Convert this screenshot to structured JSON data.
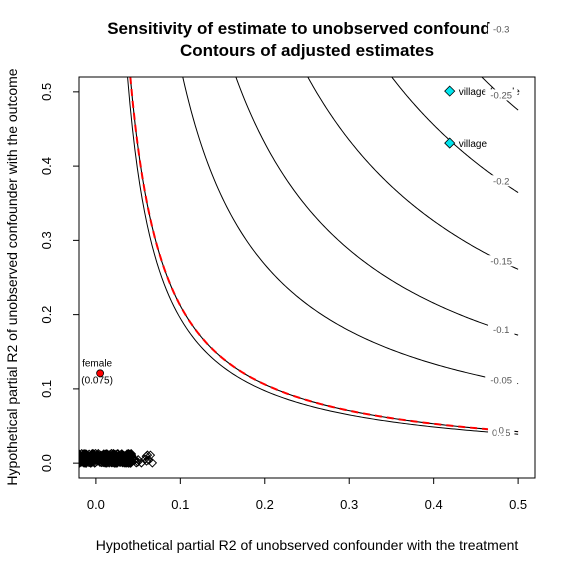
{
  "chart_data": {
    "type": "contour",
    "title": "Sensitivity of estimate to unobserved confounder",
    "subtitle": "Contours of adjusted estimates",
    "xlabel": "Hypothetical partial R2 of unobserved confounder with the treatment",
    "ylabel": "Hypothetical partial R2 of unobserved confounder with the outcome",
    "xlim": [
      -0.02,
      0.52
    ],
    "ylim": [
      -0.02,
      0.52
    ],
    "x_ticks": [
      "0.0",
      "0.1",
      "0.2",
      "0.3",
      "0.4",
      "0.5"
    ],
    "y_ticks": [
      "0.0",
      "0.1",
      "0.2",
      "0.3",
      "0.4",
      "0.5"
    ],
    "grid": false,
    "contours": [
      {
        "label": "0.05",
        "k": 0.0195,
        "color": "#000000",
        "dashed": false
      },
      {
        "label": "0",
        "k": 0.0212,
        "color": "#ff0000",
        "dashed": true
      },
      {
        "label": "-0.05",
        "k": 0.0535,
        "color": "#000000",
        "dashed": false
      },
      {
        "label": "-0.1",
        "k": 0.0862,
        "color": "#000000",
        "dashed": false
      },
      {
        "label": "-0.15",
        "k": 0.1305,
        "color": "#000000",
        "dashed": false
      },
      {
        "label": "-0.2",
        "k": 0.1822,
        "color": "#000000",
        "dashed": false
      },
      {
        "label": "-0.25",
        "k": 0.2377,
        "color": "#000000",
        "dashed": false
      },
      {
        "label": "-0.3",
        "k": 0.2803,
        "color": "#000000",
        "dashed": false
      }
    ],
    "points": [
      {
        "label": "female",
        "sublabel": "(0.075)",
        "x": 0.005,
        "y": 0.121,
        "color": "#ff0000",
        "shape": "circle"
      },
      {
        "label": "village",
        "x": 0.419,
        "y": 0.431,
        "color": "#00e5ee",
        "shape": "diamond"
      },
      {
        "label": "village,female",
        "x": 0.419,
        "y": 0.501,
        "color": "#00e5ee",
        "shape": "diamond"
      }
    ],
    "benchmark_cluster": {
      "x_range": [
        -0.02,
        0.067
      ],
      "y_range": [
        0.0,
        0.013
      ],
      "color": "#000000"
    }
  }
}
